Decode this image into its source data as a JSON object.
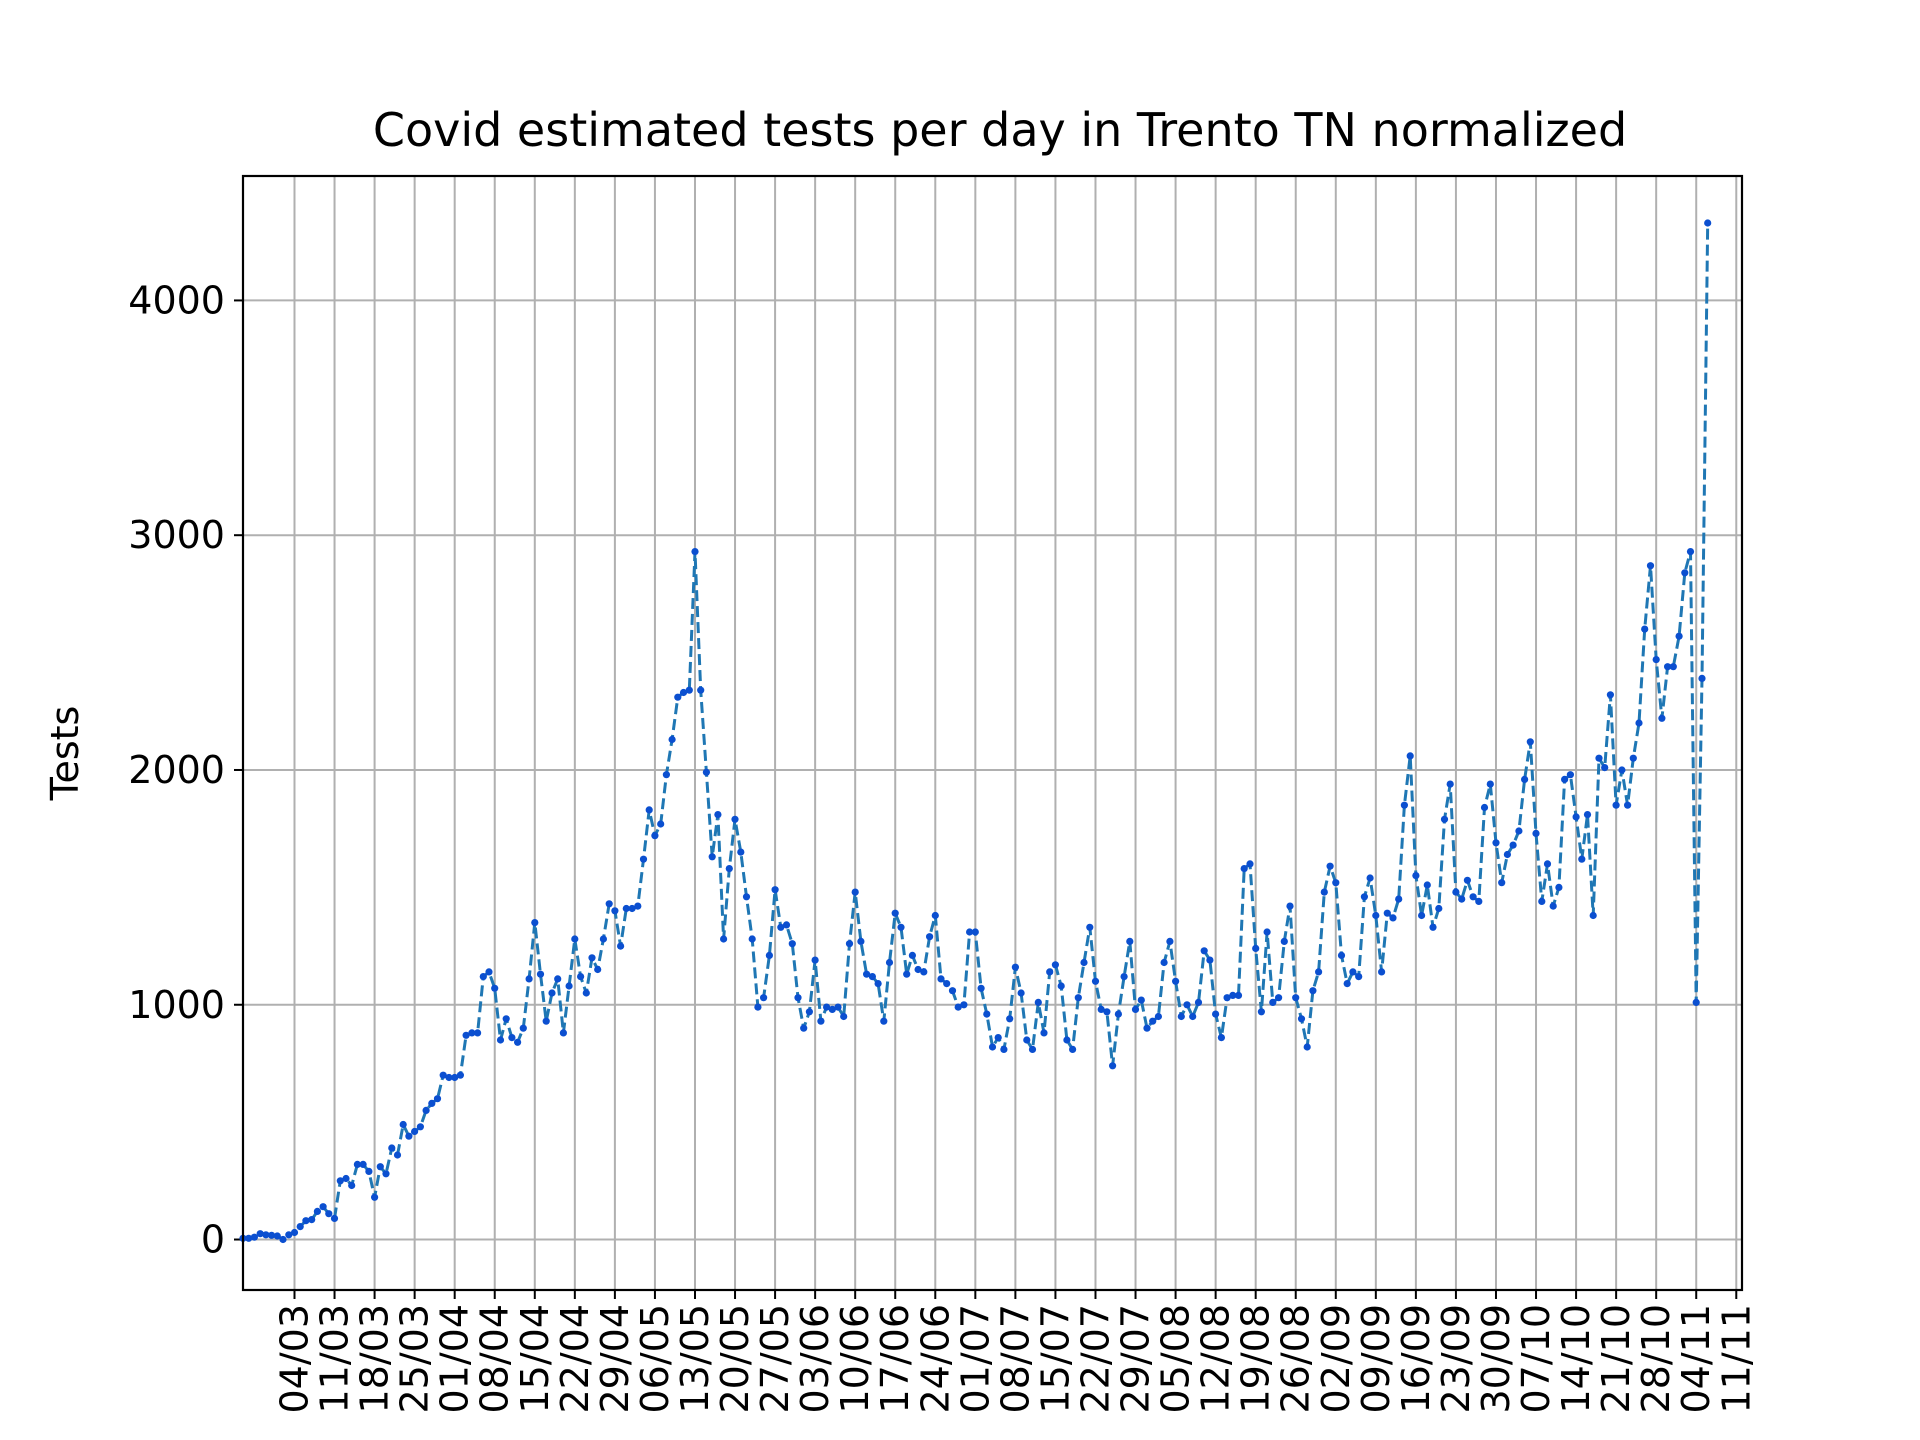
{
  "chart_data": {
    "type": "line",
    "title": "Covid estimated tests per day in Trento TN normalized",
    "xlabel": "",
    "ylabel": "Tests",
    "x_start": "2020-02-24",
    "x_end": "2020-11-12",
    "x_ticks": [
      {
        "date": "2020-03-04",
        "label": "04/03"
      },
      {
        "date": "2020-03-11",
        "label": "11/03"
      },
      {
        "date": "2020-03-18",
        "label": "18/03"
      },
      {
        "date": "2020-03-25",
        "label": "25/03"
      },
      {
        "date": "2020-04-01",
        "label": "01/04"
      },
      {
        "date": "2020-04-08",
        "label": "08/04"
      },
      {
        "date": "2020-04-15",
        "label": "15/04"
      },
      {
        "date": "2020-04-22",
        "label": "22/04"
      },
      {
        "date": "2020-04-29",
        "label": "29/04"
      },
      {
        "date": "2020-05-06",
        "label": "06/05"
      },
      {
        "date": "2020-05-13",
        "label": "13/05"
      },
      {
        "date": "2020-05-20",
        "label": "20/05"
      },
      {
        "date": "2020-05-27",
        "label": "27/05"
      },
      {
        "date": "2020-06-03",
        "label": "03/06"
      },
      {
        "date": "2020-06-10",
        "label": "10/06"
      },
      {
        "date": "2020-06-17",
        "label": "17/06"
      },
      {
        "date": "2020-06-24",
        "label": "24/06"
      },
      {
        "date": "2020-07-01",
        "label": "01/07"
      },
      {
        "date": "2020-07-08",
        "label": "08/07"
      },
      {
        "date": "2020-07-15",
        "label": "15/07"
      },
      {
        "date": "2020-07-22",
        "label": "22/07"
      },
      {
        "date": "2020-07-29",
        "label": "29/07"
      },
      {
        "date": "2020-08-05",
        "label": "05/08"
      },
      {
        "date": "2020-08-12",
        "label": "12/08"
      },
      {
        "date": "2020-08-19",
        "label": "19/08"
      },
      {
        "date": "2020-08-26",
        "label": "26/08"
      },
      {
        "date": "2020-09-02",
        "label": "02/09"
      },
      {
        "date": "2020-09-09",
        "label": "09/09"
      },
      {
        "date": "2020-09-16",
        "label": "16/09"
      },
      {
        "date": "2020-09-23",
        "label": "23/09"
      },
      {
        "date": "2020-09-30",
        "label": "30/09"
      },
      {
        "date": "2020-10-07",
        "label": "07/10"
      },
      {
        "date": "2020-10-14",
        "label": "14/10"
      },
      {
        "date": "2020-10-21",
        "label": "21/10"
      },
      {
        "date": "2020-10-28",
        "label": "28/10"
      },
      {
        "date": "2020-11-04",
        "label": "04/11"
      },
      {
        "date": "2020-11-11",
        "label": "11/11"
      }
    ],
    "y_ticks": [
      0,
      1000,
      2000,
      3000,
      4000
    ],
    "ylim": [
      -215,
      4530
    ],
    "grid": true,
    "series": [
      {
        "name": "",
        "color": "#1f77b4",
        "marker_color": "#0b4fd0",
        "line_style": "dashed",
        "start_date": "2020-02-24",
        "values": [
          5,
          5,
          10,
          25,
          20,
          18,
          15,
          0,
          20,
          30,
          55,
          80,
          85,
          120,
          140,
          110,
          90,
          250,
          260,
          230,
          320,
          320,
          290,
          180,
          310,
          280,
          390,
          360,
          490,
          440,
          460,
          480,
          550,
          580,
          600,
          700,
          690,
          690,
          700,
          870,
          880,
          880,
          1120,
          1140,
          1070,
          850,
          940,
          860,
          840,
          900,
          1110,
          1350,
          1130,
          930,
          1050,
          1110,
          880,
          1080,
          1280,
          1120,
          1050,
          1200,
          1150,
          1280,
          1430,
          1400,
          1250,
          1410,
          1410,
          1420,
          1620,
          1830,
          1720,
          1770,
          1980,
          2130,
          2310,
          2330,
          2340,
          2930,
          2340,
          1990,
          1630,
          1810,
          1280,
          1580,
          1790,
          1650,
          1460,
          1280,
          990,
          1030,
          1210,
          1490,
          1330,
          1340,
          1260,
          1030,
          900,
          970,
          1190,
          930,
          990,
          980,
          990,
          950,
          1260,
          1480,
          1270,
          1130,
          1120,
          1090,
          930,
          1180,
          1390,
          1330,
          1130,
          1210,
          1150,
          1140,
          1290,
          1380,
          1110,
          1090,
          1060,
          990,
          1000,
          1310,
          1310,
          1070,
          960,
          820,
          860,
          810,
          940,
          1160,
          1050,
          850,
          810,
          1010,
          880,
          1140,
          1170,
          1080,
          850,
          810,
          1030,
          1180,
          1330,
          1100,
          980,
          970,
          740,
          960,
          1120,
          1270,
          980,
          1020,
          900,
          930,
          950,
          1180,
          1270,
          1100,
          950,
          1000,
          950,
          1010,
          1230,
          1190,
          960,
          860,
          1030,
          1040,
          1040,
          1580,
          1600,
          1240,
          970,
          1310,
          1010,
          1030,
          1270,
          1420,
          1030,
          940,
          820,
          1060,
          1140,
          1480,
          1590,
          1520,
          1210,
          1090,
          1140,
          1120,
          1460,
          1540,
          1380,
          1140,
          1390,
          1370,
          1450,
          1850,
          2060,
          1550,
          1380,
          1510,
          1330,
          1410,
          1790,
          1940,
          1480,
          1450,
          1530,
          1460,
          1440,
          1840,
          1940,
          1690,
          1520,
          1640,
          1680,
          1740,
          1960,
          2120,
          1730,
          1440,
          1600,
          1420,
          1500,
          1960,
          1980,
          1800,
          1620,
          1810,
          1380,
          2050,
          2010,
          2320,
          1850,
          2000,
          1850,
          2050,
          2200,
          2600,
          2870,
          2470,
          2220,
          2440,
          2440,
          2570,
          2840,
          2930,
          1010,
          2390,
          4330
        ]
      }
    ]
  }
}
